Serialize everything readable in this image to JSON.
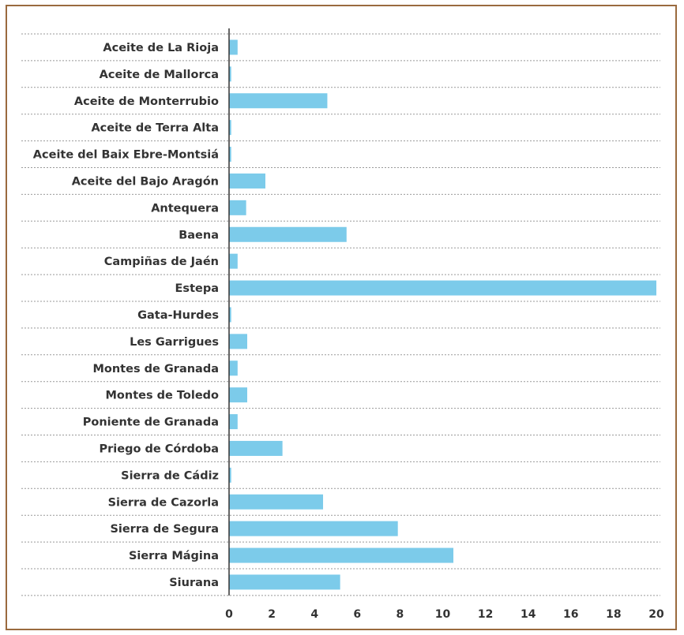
{
  "chart_data": {
    "type": "bar",
    "orientation": "horizontal",
    "categories": [
      "Aceite de La Rioja",
      "Aceite de Mallorca",
      "Aceite de Monterrubio",
      "Aceite de Terra Alta",
      "Aceite del Baix Ebre-Montsiá",
      "Aceite del Bajo Aragón",
      "Antequera",
      "Baena",
      "Campiñas de Jaén",
      "Estepa",
      "Gata-Hurdes",
      "Les Garrigues",
      "Montes de Granada",
      "Montes de Toledo",
      "Poniente de Granada",
      "Priego de Córdoba",
      "Sierra de Cádiz",
      "Sierra de Cazorla",
      "Sierra de Segura",
      "Sierra Mágina",
      "Siurana"
    ],
    "values": [
      0.4,
      0.1,
      4.6,
      0.1,
      0.1,
      1.7,
      0.8,
      5.5,
      0.4,
      20.0,
      0.1,
      0.85,
      0.4,
      0.85,
      0.4,
      2.5,
      0.1,
      4.4,
      7.9,
      10.5,
      5.2
    ],
    "xlim": [
      0,
      20
    ],
    "xticks": [
      0,
      2,
      4,
      6,
      8,
      10,
      12,
      14,
      16,
      18,
      20
    ],
    "title": "",
    "xlabel": "",
    "ylabel": "",
    "grid": "horizontal dotted separators",
    "colors": {
      "bar": "#7ccbea",
      "frame": "#9a6a3e",
      "grid": "#999999",
      "axis": "#333333",
      "text": "#333333"
    }
  }
}
